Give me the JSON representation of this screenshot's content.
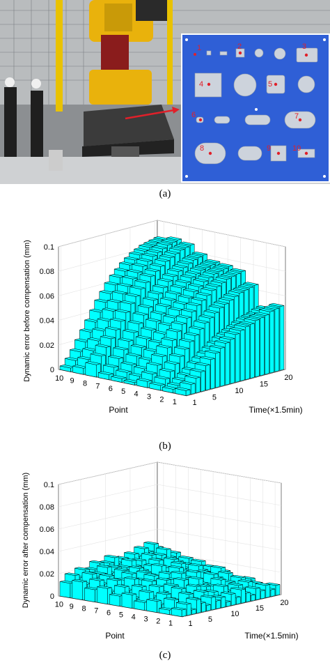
{
  "figure": {
    "captions": [
      "(a)",
      "(b)",
      "(c)"
    ]
  },
  "photo": {
    "hole_labels": [
      "1",
      "2",
      "3",
      "4",
      "5",
      "6",
      "7",
      "8",
      "9",
      "10"
    ],
    "colors": {
      "plate": "#2f5fd6",
      "marker": "#e0202a",
      "robot": "#e9b20c"
    }
  },
  "chart_data": [
    {
      "type": "bar3d",
      "xlabel": "Point",
      "ylabel": "Time(×1.5min)",
      "zlabel": "Dynamic error before compensation (mm)",
      "x_ticks": [
        "10",
        "9",
        "8",
        "7",
        "6",
        "5",
        "4",
        "3",
        "2",
        "1"
      ],
      "y_ticks": [
        "1",
        "5",
        "10",
        "15",
        "20"
      ],
      "z_ticks": [
        "0",
        "0.02",
        "0.04",
        "0.06",
        "0.08",
        "0.1"
      ],
      "zlim": [
        0,
        0.1
      ],
      "bar_color": "#00ffff",
      "grid": true,
      "points": [
        1,
        2,
        3,
        4,
        5,
        6,
        7,
        8,
        9,
        10
      ],
      "times": [
        1,
        2,
        3,
        4,
        5,
        6,
        7,
        8,
        9,
        10,
        11,
        12,
        13,
        14,
        15,
        16,
        17,
        18,
        19,
        20
      ],
      "values": [
        [
          0.004,
          0.008,
          0.012,
          0.016,
          0.02,
          0.024,
          0.028,
          0.031,
          0.034,
          0.036,
          0.039,
          0.041,
          0.043,
          0.044,
          0.046,
          0.047,
          0.048,
          0.05,
          0.051,
          0.052
        ],
        [
          0.003,
          0.005,
          0.008,
          0.011,
          0.014,
          0.018,
          0.021,
          0.024,
          0.027,
          0.03,
          0.033,
          0.035,
          0.037,
          0.039,
          0.041,
          0.043,
          0.044,
          0.045,
          0.047,
          0.048
        ],
        [
          0.004,
          0.008,
          0.013,
          0.018,
          0.023,
          0.028,
          0.033,
          0.037,
          0.041,
          0.045,
          0.048,
          0.051,
          0.054,
          0.056,
          0.058,
          0.06,
          0.062,
          0.063,
          0.064,
          0.065
        ],
        [
          0.005,
          0.01,
          0.016,
          0.022,
          0.028,
          0.033,
          0.039,
          0.044,
          0.048,
          0.052,
          0.056,
          0.059,
          0.062,
          0.065,
          0.067,
          0.069,
          0.071,
          0.072,
          0.073,
          0.074
        ],
        [
          0.002,
          0.006,
          0.011,
          0.017,
          0.023,
          0.029,
          0.035,
          0.041,
          0.046,
          0.051,
          0.055,
          0.059,
          0.063,
          0.066,
          0.069,
          0.071,
          0.073,
          0.074,
          0.075,
          0.076
        ],
        [
          0.003,
          0.007,
          0.012,
          0.018,
          0.024,
          0.03,
          0.036,
          0.042,
          0.047,
          0.052,
          0.056,
          0.06,
          0.064,
          0.067,
          0.07,
          0.072,
          0.074,
          0.075,
          0.076,
          0.077
        ],
        [
          0.004,
          0.009,
          0.015,
          0.021,
          0.027,
          0.033,
          0.039,
          0.045,
          0.05,
          0.055,
          0.059,
          0.063,
          0.067,
          0.07,
          0.073,
          0.075,
          0.077,
          0.079,
          0.08,
          0.081
        ],
        [
          0.01,
          0.016,
          0.022,
          0.028,
          0.034,
          0.04,
          0.046,
          0.052,
          0.057,
          0.062,
          0.066,
          0.07,
          0.073,
          0.076,
          0.079,
          0.081,
          0.083,
          0.085,
          0.086,
          0.087
        ],
        [
          0.005,
          0.011,
          0.017,
          0.024,
          0.031,
          0.038,
          0.045,
          0.051,
          0.057,
          0.062,
          0.067,
          0.071,
          0.075,
          0.078,
          0.081,
          0.083,
          0.085,
          0.087,
          0.088,
          0.089
        ],
        [
          0.003,
          0.008,
          0.014,
          0.021,
          0.028,
          0.035,
          0.042,
          0.049,
          0.055,
          0.061,
          0.066,
          0.07,
          0.074,
          0.077,
          0.08,
          0.082,
          0.084,
          0.085,
          0.086,
          0.087
        ]
      ]
    },
    {
      "type": "bar3d",
      "xlabel": "Point",
      "ylabel": "Time(×1.5min)",
      "zlabel": "Dynamic error after compensation (mm)",
      "x_ticks": [
        "10",
        "9",
        "8",
        "7",
        "6",
        "5",
        "4",
        "3",
        "2",
        "1"
      ],
      "y_ticks": [
        "1",
        "5",
        "10",
        "15",
        "20"
      ],
      "z_ticks": [
        "0",
        "0.02",
        "0.04",
        "0.06",
        "0.08",
        "0.1"
      ],
      "zlim": [
        0,
        0.1
      ],
      "bar_color": "#00ffff",
      "grid": true,
      "points": [
        1,
        2,
        3,
        4,
        5,
        6,
        7,
        8,
        9,
        10
      ],
      "times": [
        1,
        2,
        3,
        4,
        5,
        6,
        7,
        8,
        9,
        10,
        11,
        12,
        13,
        14,
        15,
        16,
        17,
        18,
        19,
        20
      ],
      "values": [
        [
          0.006,
          0.01,
          0.004,
          0.012,
          0.008,
          0.005,
          0.011,
          0.007,
          0.009,
          0.004,
          0.01,
          0.006,
          0.012,
          0.008,
          0.005,
          0.01,
          0.007,
          0.011,
          0.006,
          0.009
        ],
        [
          0.004,
          0.012,
          0.008,
          0.006,
          0.014,
          0.009,
          0.005,
          0.013,
          0.007,
          0.011,
          0.006,
          0.014,
          0.009,
          0.005,
          0.012,
          0.008,
          0.013,
          0.006,
          0.01,
          0.007
        ],
        [
          0.01,
          0.006,
          0.014,
          0.009,
          0.005,
          0.016,
          0.011,
          0.007,
          0.015,
          0.009,
          0.013,
          0.006,
          0.011,
          0.016,
          0.008,
          0.012,
          0.007,
          0.014,
          0.009,
          0.011
        ],
        [
          0.007,
          0.015,
          0.01,
          0.018,
          0.012,
          0.008,
          0.016,
          0.011,
          0.019,
          0.013,
          0.009,
          0.017,
          0.012,
          0.01,
          0.018,
          0.014,
          0.009,
          0.016,
          0.012,
          0.01
        ],
        [
          0.012,
          0.008,
          0.017,
          0.011,
          0.02,
          0.013,
          0.009,
          0.018,
          0.012,
          0.016,
          0.021,
          0.011,
          0.015,
          0.019,
          0.01,
          0.017,
          0.013,
          0.011,
          0.018,
          0.014
        ],
        [
          0.009,
          0.016,
          0.012,
          0.021,
          0.014,
          0.018,
          0.011,
          0.02,
          0.015,
          0.012,
          0.019,
          0.016,
          0.022,
          0.013,
          0.017,
          0.011,
          0.02,
          0.015,
          0.012,
          0.016
        ],
        [
          0.014,
          0.01,
          0.019,
          0.013,
          0.017,
          0.022,
          0.015,
          0.012,
          0.02,
          0.017,
          0.014,
          0.023,
          0.016,
          0.019,
          0.013,
          0.021,
          0.016,
          0.018,
          0.014,
          0.019
        ],
        [
          0.011,
          0.018,
          0.014,
          0.02,
          0.016,
          0.013,
          0.022,
          0.017,
          0.015,
          0.021,
          0.018,
          0.014,
          0.02,
          0.024,
          0.017,
          0.015,
          0.022,
          0.019,
          0.016,
          0.02
        ],
        [
          0.016,
          0.013,
          0.021,
          0.017,
          0.019,
          0.024,
          0.018,
          0.022,
          0.016,
          0.02,
          0.025,
          0.019,
          0.023,
          0.018,
          0.026,
          0.021,
          0.024,
          0.028,
          0.02,
          0.023
        ],
        [
          0.013,
          0.019,
          0.016,
          0.022,
          0.018,
          0.02,
          0.025,
          0.019,
          0.023,
          0.027,
          0.021,
          0.024,
          0.02,
          0.026,
          0.023,
          0.029,
          0.025,
          0.031,
          0.027,
          0.024
        ]
      ]
    }
  ]
}
